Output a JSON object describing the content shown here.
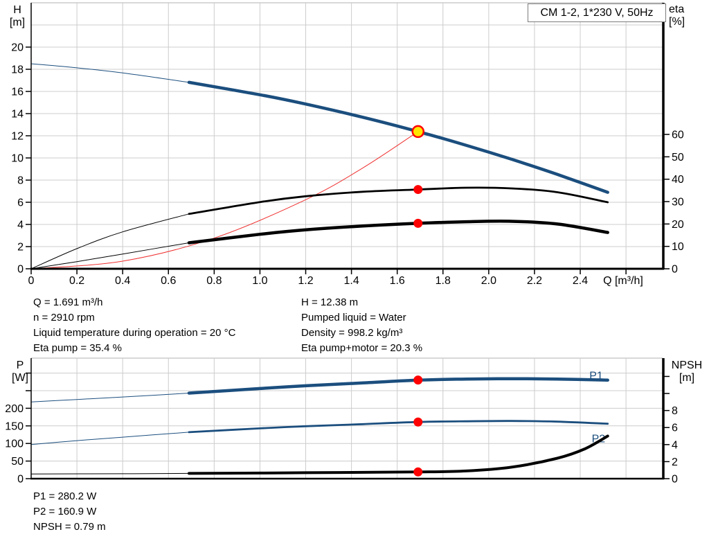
{
  "colors": {
    "curve_blue": "#1b4e7e",
    "curve_black": "#000000",
    "system_red": "#f03030",
    "dot_red": "#ff0000",
    "duty_yellow": "#ffe600",
    "grid": "#cccccc",
    "axis": "#000000"
  },
  "info": {
    "left": [
      "Q = 1.691 m³/h",
      "n = 2910 rpm",
      "Liquid temperature during operation = 20 °C",
      "Eta pump = 35.4 %"
    ],
    "right": [
      "H = 12.38 m",
      "Pumped liquid = Water",
      "Density = 998.2 kg/m³",
      "Eta pump+motor = 20.3 %"
    ]
  },
  "results": [
    "P1 = 280.2 W",
    "P2 = 160.9 W",
    "NPSH = 0.79 m"
  ],
  "chart_data": [
    {
      "id": "qh-eta-chart",
      "type": "line",
      "title": "CM 1-2, 1*230 V, 50Hz",
      "x": {
        "label": "Q [m³/h]",
        "min": 0,
        "max": 2.76,
        "ticks": [
          [
            0,
            "0"
          ],
          [
            0.2,
            "0.2"
          ],
          [
            0.4,
            "0.4"
          ],
          [
            0.6,
            "0.6"
          ],
          [
            0.8,
            "0.8"
          ],
          [
            1.0,
            "1.0"
          ],
          [
            1.2,
            "1.2"
          ],
          [
            1.4,
            "1.4"
          ],
          [
            1.6,
            "1.6"
          ],
          [
            1.8,
            "1.8"
          ],
          [
            2.0,
            "2.0"
          ],
          [
            2.2,
            "2.2"
          ],
          [
            2.4,
            "2.4"
          ],
          [
            2.6,
            ""
          ]
        ],
        "grid": [
          0.2,
          0.4,
          0.6,
          0.8,
          1.0,
          1.2,
          1.4,
          1.6,
          1.8,
          2.0,
          2.2,
          2.4,
          2.6
        ]
      },
      "y_left": {
        "label_lines": [
          "H",
          "[m]"
        ],
        "min": 0,
        "max": 24,
        "ticks": [
          [
            0,
            "0"
          ],
          [
            2,
            "2"
          ],
          [
            4,
            "4"
          ],
          [
            6,
            "6"
          ],
          [
            8,
            "8"
          ],
          [
            10,
            "10"
          ],
          [
            12,
            "12"
          ],
          [
            14,
            "14"
          ],
          [
            16,
            "16"
          ],
          [
            18,
            "18"
          ],
          [
            20,
            "20"
          ]
        ],
        "grid": [
          2,
          4,
          6,
          8,
          10,
          12,
          14,
          16,
          18,
          20,
          22
        ]
      },
      "y_right": {
        "label_lines": [
          "eta",
          "[%]"
        ],
        "min": 0,
        "max": 118.8,
        "ticks": [
          [
            0,
            "0"
          ],
          [
            10,
            "10"
          ],
          [
            20,
            "20"
          ],
          [
            30,
            "30"
          ],
          [
            40,
            "40"
          ],
          [
            50,
            "50"
          ],
          [
            60,
            "60"
          ]
        ]
      },
      "series": [
        {
          "id": "system-curve",
          "name": "System curve",
          "axis": "left",
          "color": "#f03030",
          "thin": 1,
          "thick": 1,
          "split": null,
          "points": [
            [
              0,
              0
            ],
            [
              0.4,
              0.69
            ],
            [
              0.8,
              2.77
            ],
            [
              1.2,
              6.23
            ],
            [
              1.45,
              9.1
            ],
            [
              1.691,
              12.38
            ]
          ]
        },
        {
          "id": "h-curve",
          "name": "H",
          "axis": "left",
          "color": "#1b4e7e",
          "thin": 1,
          "thick": 4.5,
          "split": 0.69,
          "points": [
            [
              0,
              18.5
            ],
            [
              0.2,
              18.13
            ],
            [
              0.4,
              17.67
            ],
            [
              0.69,
              16.82
            ],
            [
              1.0,
              15.7
            ],
            [
              1.2,
              14.86
            ],
            [
              1.45,
              13.67
            ],
            [
              1.691,
              12.38
            ],
            [
              1.9,
              11.15
            ],
            [
              2.1,
              9.88
            ],
            [
              2.3,
              8.51
            ],
            [
              2.52,
              6.9
            ]
          ]
        },
        {
          "id": "eta-pump-curve",
          "name": "Eta pump",
          "axis": "right",
          "color": "#000000",
          "thin": 1,
          "thick": 2.8,
          "split": 0.69,
          "points": [
            [
              0,
              0
            ],
            [
              0.2,
              9
            ],
            [
              0.4,
              16.5
            ],
            [
              0.69,
              24.5
            ],
            [
              1.0,
              29.8
            ],
            [
              1.2,
              32.4
            ],
            [
              1.45,
              34.4
            ],
            [
              1.691,
              35.4
            ],
            [
              1.9,
              36.2
            ],
            [
              2.1,
              35.9
            ],
            [
              2.3,
              34.2
            ],
            [
              2.52,
              29.7
            ]
          ]
        },
        {
          "id": "eta-pump-motor-curve",
          "name": "Eta pump+motor",
          "axis": "right",
          "color": "#000000",
          "thin": 1,
          "thick": 4.5,
          "split": 0.69,
          "points": [
            [
              0,
              0
            ],
            [
              0.2,
              3.2
            ],
            [
              0.4,
              6.6
            ],
            [
              0.69,
              11.6
            ],
            [
              1.0,
              15.4
            ],
            [
              1.2,
              17.4
            ],
            [
              1.45,
              19.1
            ],
            [
              1.691,
              20.3
            ],
            [
              1.9,
              21.0
            ],
            [
              2.1,
              21.2
            ],
            [
              2.3,
              20.0
            ],
            [
              2.52,
              16.2
            ]
          ]
        }
      ],
      "markers": [
        {
          "id": "duty-point-qh",
          "q": 1.691,
          "value": 12.38,
          "axis": "left",
          "style": "duty"
        },
        {
          "id": "duty-dot-eta-pump",
          "q": 1.691,
          "value": 35.4,
          "axis": "right",
          "style": "dot"
        },
        {
          "id": "duty-dot-eta-pump-motor",
          "q": 1.691,
          "value": 20.3,
          "axis": "right",
          "style": "dot"
        }
      ]
    },
    {
      "id": "power-npsh-chart",
      "type": "line",
      "title": "",
      "x": {
        "label": "",
        "min": 0,
        "max": 2.76,
        "ticks": [],
        "grid": [
          0.2,
          0.4,
          0.6,
          0.8,
          1.0,
          1.2,
          1.4,
          1.6,
          1.8,
          2.0,
          2.2,
          2.4,
          2.6
        ]
      },
      "y_left": {
        "label_lines": [
          "P",
          "[W]"
        ],
        "min": 0,
        "max": 342.5,
        "ticks": [
          [
            0,
            "0"
          ],
          [
            50,
            "50"
          ],
          [
            100,
            "100"
          ],
          [
            150,
            "150"
          ],
          [
            200,
            "200"
          ],
          [
            250,
            ""
          ],
          [
            300,
            ""
          ]
        ],
        "grid": [
          50,
          100,
          150,
          200,
          250,
          300
        ]
      },
      "y_right": {
        "label_lines": [
          "NPSH",
          "[m]"
        ],
        "min": 0,
        "max": 14.15,
        "ticks": [
          [
            0,
            "0"
          ],
          [
            2,
            "2"
          ],
          [
            4,
            "4"
          ],
          [
            6,
            "6"
          ],
          [
            8,
            "8"
          ],
          [
            10,
            ""
          ],
          [
            12,
            ""
          ]
        ]
      },
      "series": [
        {
          "id": "p1-curve",
          "name": "P1",
          "axis": "left",
          "color": "#1b4e7e",
          "thin": 1,
          "thick": 4.5,
          "split": 0.69,
          "label": {
            "text": "P1",
            "q": 2.44,
            "v": 292
          },
          "points": [
            [
              0,
              218
            ],
            [
              0.2,
              225
            ],
            [
              0.4,
              232
            ],
            [
              0.69,
              243
            ],
            [
              1.0,
              256
            ],
            [
              1.2,
              264
            ],
            [
              1.45,
              272
            ],
            [
              1.691,
              280
            ],
            [
              1.9,
              283
            ],
            [
              2.1,
              284
            ],
            [
              2.3,
              283
            ],
            [
              2.52,
              280
            ]
          ]
        },
        {
          "id": "p2-curve",
          "name": "P2",
          "axis": "left",
          "color": "#1b4e7e",
          "thin": 1,
          "thick": 2.8,
          "split": 0.69,
          "label": {
            "text": "P2",
            "q": 2.45,
            "v": 113
          },
          "points": [
            [
              0,
              97
            ],
            [
              0.2,
              108
            ],
            [
              0.4,
              118
            ],
            [
              0.69,
              132
            ],
            [
              1.0,
              143
            ],
            [
              1.2,
              149
            ],
            [
              1.45,
              155
            ],
            [
              1.691,
              161
            ],
            [
              1.9,
              163
            ],
            [
              2.1,
              164
            ],
            [
              2.3,
              162
            ],
            [
              2.52,
              156
            ]
          ]
        },
        {
          "id": "npsh-curve",
          "name": "NPSH",
          "axis": "right",
          "color": "#000000",
          "thin": 1,
          "thick": 4,
          "split": 0.69,
          "points": [
            [
              0,
              0.55
            ],
            [
              0.4,
              0.58
            ],
            [
              0.69,
              0.62
            ],
            [
              1.0,
              0.66
            ],
            [
              1.2,
              0.7
            ],
            [
              1.45,
              0.74
            ],
            [
              1.691,
              0.79
            ],
            [
              1.9,
              0.9
            ],
            [
              2.1,
              1.35
            ],
            [
              2.3,
              2.4
            ],
            [
              2.42,
              3.5
            ],
            [
              2.52,
              5.0
            ]
          ]
        }
      ],
      "markers": [
        {
          "id": "duty-dot-p1",
          "q": 1.691,
          "value": 280.2,
          "axis": "left",
          "style": "dot"
        },
        {
          "id": "duty-dot-p2",
          "q": 1.691,
          "value": 160.9,
          "axis": "left",
          "style": "dot"
        },
        {
          "id": "duty-dot-npsh",
          "q": 1.691,
          "value": 0.79,
          "axis": "right",
          "style": "dot"
        }
      ]
    }
  ]
}
